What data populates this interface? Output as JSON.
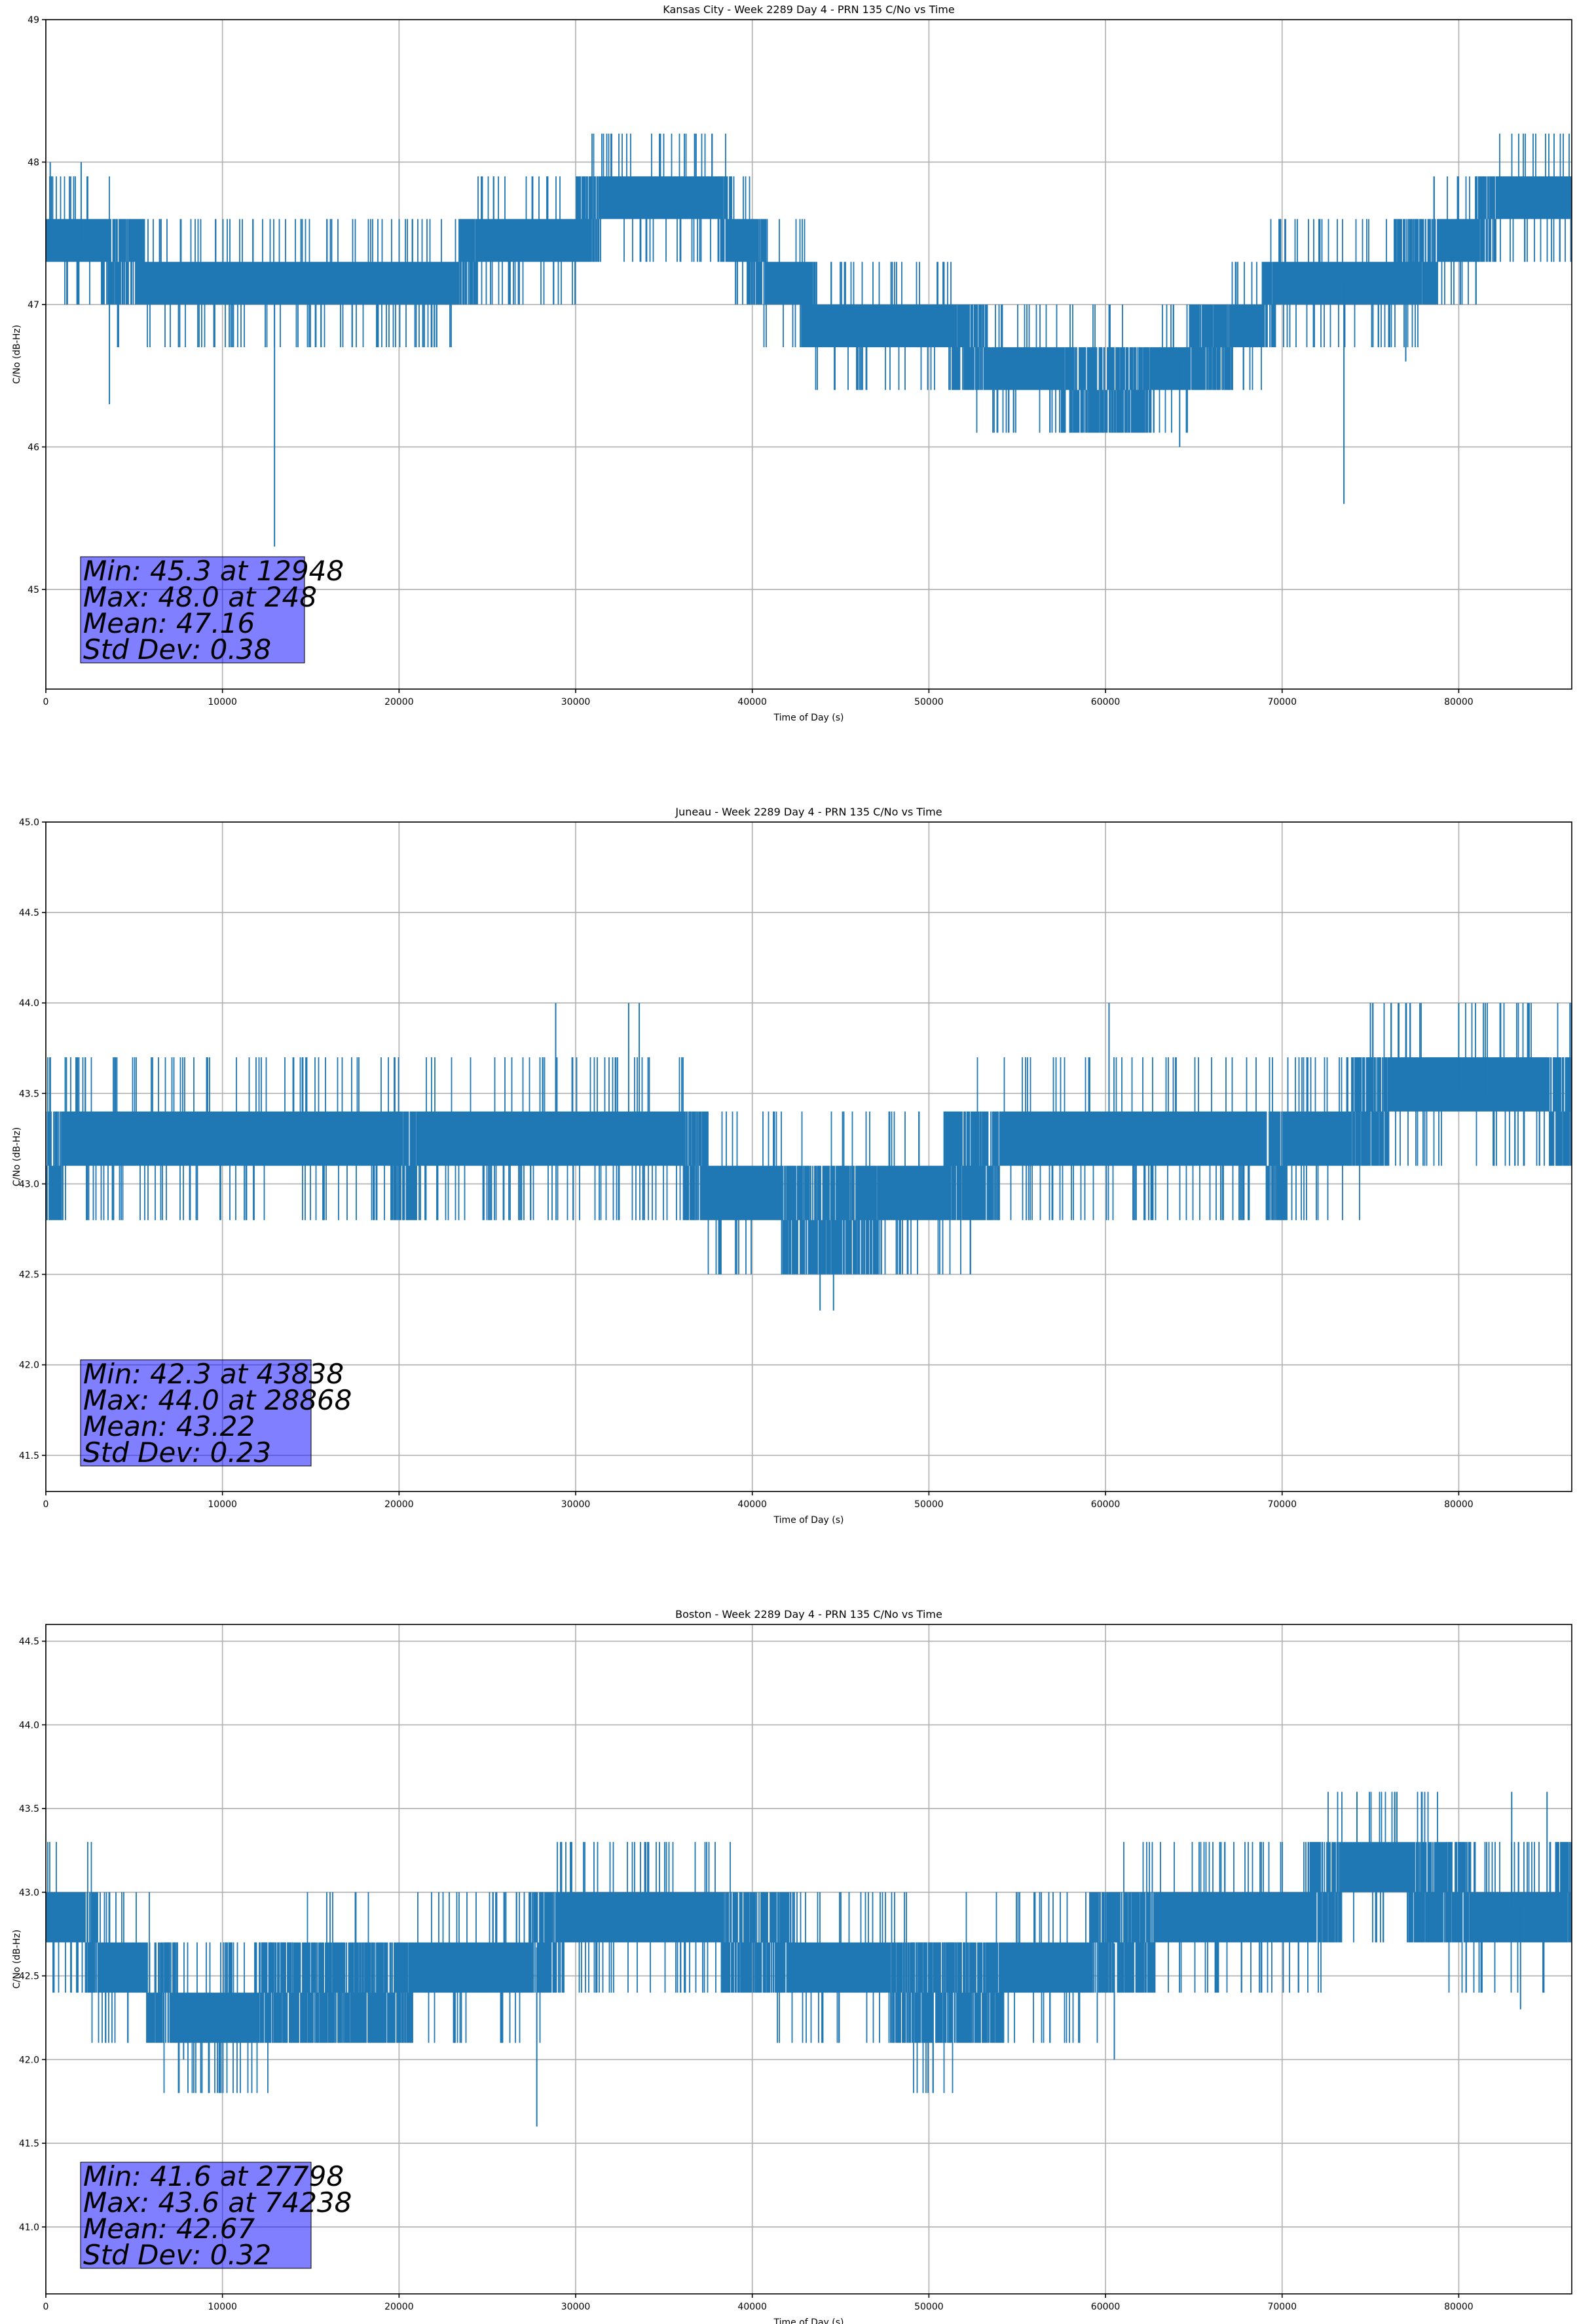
{
  "chart_data": [
    {
      "type": "line",
      "title": "Kansas City - Week 2289 Day 4 - PRN 135 C/No vs Time",
      "xlabel": "Time of Day (s)",
      "ylabel": "C/No (dB-Hz)",
      "xlim": [
        0,
        86400
      ],
      "ylim": [
        44.3,
        49.0
      ],
      "xticks": [
        0,
        10000,
        20000,
        30000,
        40000,
        50000,
        60000,
        70000,
        80000
      ],
      "xtick_labels": [
        "0",
        "10000",
        "20000",
        "30000",
        "40000",
        "50000",
        "60000",
        "70000",
        "80000"
      ],
      "yticks": [
        45,
        46,
        47,
        48,
        49
      ],
      "ytick_labels": [
        "45",
        "46",
        "47",
        "48",
        "49"
      ],
      "grid": true,
      "series_color": "#1f77b4",
      "trend": [
        [
          0,
          47.5
        ],
        [
          2000,
          47.45
        ],
        [
          4000,
          47.3
        ],
        [
          8000,
          47.15
        ],
        [
          12000,
          47.12
        ],
        [
          16000,
          47.1
        ],
        [
          20000,
          47.15
        ],
        [
          23000,
          47.2
        ],
        [
          25000,
          47.42
        ],
        [
          29000,
          47.45
        ],
        [
          32000,
          47.72
        ],
        [
          35000,
          47.8
        ],
        [
          38000,
          47.7
        ],
        [
          40000,
          47.3
        ],
        [
          42000,
          47.15
        ],
        [
          44000,
          46.9
        ],
        [
          48000,
          46.8
        ],
        [
          52000,
          46.75
        ],
        [
          55000,
          46.5
        ],
        [
          58000,
          46.45
        ],
        [
          62000,
          46.4
        ],
        [
          64000,
          46.6
        ],
        [
          68000,
          46.8
        ],
        [
          70000,
          47.12
        ],
        [
          74000,
          47.15
        ],
        [
          78000,
          47.3
        ],
        [
          80000,
          47.45
        ],
        [
          83000,
          47.75
        ],
        [
          86400,
          47.8
        ]
      ],
      "spikes": [
        [
          248,
          48.0
        ],
        [
          2000,
          48.0
        ],
        [
          3600,
          46.3
        ],
        [
          12948,
          45.3
        ],
        [
          64200,
          46.0
        ],
        [
          73500,
          45.6
        ],
        [
          77000,
          46.6
        ]
      ],
      "stats": {
        "min": "Min: 45.3 at 12948",
        "max": "Max: 48.0 at 248",
        "mean": "Mean: 47.16",
        "std": "Std Dev: 0.38"
      }
    },
    {
      "type": "line",
      "title": "Juneau - Week 2289 Day 4 - PRN 135 C/No vs Time",
      "xlabel": "Time of Day (s)",
      "ylabel": "C/No (dB-Hz)",
      "xlim": [
        0,
        86400
      ],
      "ylim": [
        41.3,
        45.0
      ],
      "xticks": [
        0,
        10000,
        20000,
        30000,
        40000,
        50000,
        60000,
        70000,
        80000
      ],
      "xtick_labels": [
        "0",
        "10000",
        "20000",
        "30000",
        "40000",
        "50000",
        "60000",
        "70000",
        "80000"
      ],
      "yticks": [
        41.5,
        42.0,
        42.5,
        43.0,
        43.5,
        44.0,
        44.5,
        45.0
      ],
      "ytick_labels": [
        "41.5",
        "42.0",
        "42.5",
        "43.0",
        "43.5",
        "44.0",
        "44.5",
        "45.0"
      ],
      "grid": true,
      "series_color": "#1f77b4",
      "trend": [
        [
          0,
          43.15
        ],
        [
          5000,
          43.2
        ],
        [
          10000,
          43.3
        ],
        [
          15000,
          43.25
        ],
        [
          20000,
          43.15
        ],
        [
          25000,
          43.2
        ],
        [
          30000,
          43.3
        ],
        [
          35000,
          43.25
        ],
        [
          38000,
          43.0
        ],
        [
          42000,
          42.85
        ],
        [
          46000,
          42.8
        ],
        [
          50000,
          43.0
        ],
        [
          55000,
          43.2
        ],
        [
          60000,
          43.3
        ],
        [
          65000,
          43.2
        ],
        [
          70000,
          43.15
        ],
        [
          73000,
          43.25
        ],
        [
          75000,
          43.45
        ],
        [
          80000,
          43.5
        ],
        [
          86400,
          43.45
        ]
      ],
      "spikes": [
        [
          28868,
          44.0
        ],
        [
          33000,
          44.0
        ],
        [
          33600,
          44.0
        ],
        [
          43838,
          42.3
        ],
        [
          44600,
          42.3
        ],
        [
          60200,
          44.0
        ],
        [
          75000,
          44.0
        ],
        [
          80000,
          44.0
        ],
        [
          81500,
          44.0
        ],
        [
          86300,
          44.0
        ]
      ],
      "stats": {
        "min": "Min: 42.3 at 43838",
        "max": "Max: 44.0 at 28868",
        "mean": "Mean: 43.22",
        "std": "Std Dev: 0.23"
      }
    },
    {
      "type": "line",
      "title": "Boston - Week 2289 Day 4 - PRN 135 C/No vs Time",
      "xlabel": "Time of Day (s)",
      "ylabel": "C/No (dB-Hz)",
      "xlim": [
        0,
        86400
      ],
      "ylim": [
        40.6,
        44.6
      ],
      "xticks": [
        0,
        10000,
        20000,
        30000,
        40000,
        50000,
        60000,
        70000,
        80000
      ],
      "xtick_labels": [
        "0",
        "10000",
        "20000",
        "30000",
        "40000",
        "50000",
        "60000",
        "70000",
        "80000"
      ],
      "yticks": [
        41.0,
        41.5,
        42.0,
        42.5,
        43.0,
        43.5,
        44.0,
        44.5
      ],
      "ytick_labels": [
        "41.0",
        "41.5",
        "42.0",
        "42.5",
        "43.0",
        "43.5",
        "44.0",
        "44.5"
      ],
      "grid": true,
      "series_color": "#1f77b4",
      "trend": [
        [
          0,
          42.85
        ],
        [
          2000,
          42.8
        ],
        [
          3500,
          42.55
        ],
        [
          6000,
          42.45
        ],
        [
          8000,
          42.3
        ],
        [
          10000,
          42.2
        ],
        [
          12000,
          42.35
        ],
        [
          16000,
          42.45
        ],
        [
          20000,
          42.45
        ],
        [
          24000,
          42.5
        ],
        [
          26000,
          42.55
        ],
        [
          29000,
          42.75
        ],
        [
          33000,
          42.85
        ],
        [
          37000,
          42.8
        ],
        [
          40000,
          42.7
        ],
        [
          44000,
          42.6
        ],
        [
          47000,
          42.5
        ],
        [
          50000,
          42.35
        ],
        [
          54000,
          42.45
        ],
        [
          58000,
          42.6
        ],
        [
          62000,
          42.75
        ],
        [
          66000,
          42.8
        ],
        [
          70000,
          42.85
        ],
        [
          74000,
          43.1
        ],
        [
          78000,
          43.05
        ],
        [
          82000,
          42.9
        ],
        [
          86400,
          42.95
        ]
      ],
      "spikes": [
        [
          7800,
          42.0
        ],
        [
          27798,
          41.6
        ],
        [
          74238,
          43.6
        ],
        [
          76500,
          43.6
        ],
        [
          83000,
          43.6
        ],
        [
          83500,
          42.3
        ],
        [
          85000,
          43.6
        ],
        [
          60500,
          42.0
        ]
      ],
      "stats": {
        "min": "Min: 41.6 at 27798",
        "max": "Max: 43.6 at 74238",
        "mean": "Mean: 42.67",
        "std": "Std Dev: 0.32"
      }
    }
  ]
}
